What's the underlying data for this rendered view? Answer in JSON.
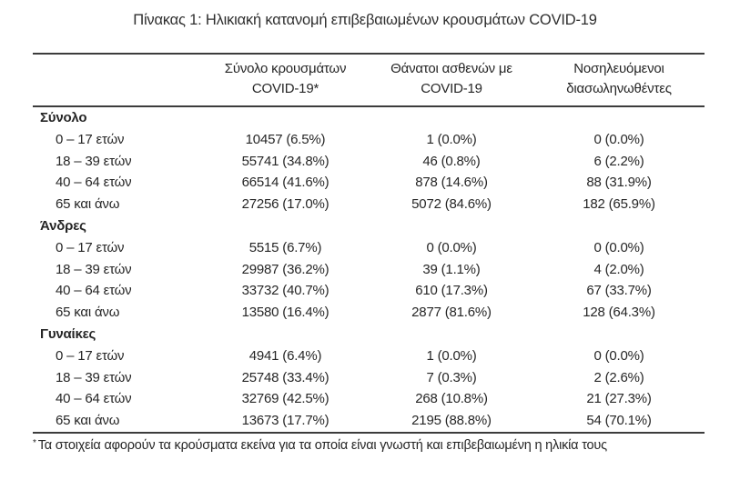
{
  "title": "Πίνακας 1: Ηλικιακή κατανομή επιβεβαιωμένων κρουσμάτων COVID-19",
  "table": {
    "col_headers": [
      {
        "line1": "Σύνολο κρουσμάτων",
        "line2": "COVID-19*"
      },
      {
        "line1": "Θάνατοι ασθενών με",
        "line2": "COVID-19"
      },
      {
        "line1": "Νοσηλευόμενοι",
        "line2": "διασωληνωθέντες"
      }
    ],
    "sections": [
      {
        "label": "Σύνολο",
        "rows": [
          {
            "age": "0 – 17 ετών",
            "cases": "10457 (6.5%)",
            "deaths": "1 (0.0%)",
            "intubated": "0 (0.0%)"
          },
          {
            "age": "18 – 39 ετών",
            "cases": "55741 (34.8%)",
            "deaths": "46 (0.8%)",
            "intubated": "6 (2.2%)"
          },
          {
            "age": "40 – 64 ετών",
            "cases": "66514 (41.6%)",
            "deaths": "878 (14.6%)",
            "intubated": "88 (31.9%)"
          },
          {
            "age": "65 και άνω",
            "cases": "27256 (17.0%)",
            "deaths": "5072 (84.6%)",
            "intubated": "182 (65.9%)"
          }
        ]
      },
      {
        "label": "Άνδρες",
        "rows": [
          {
            "age": "0 – 17 ετών",
            "cases": "5515 (6.7%)",
            "deaths": "0 (0.0%)",
            "intubated": "0 (0.0%)"
          },
          {
            "age": "18 – 39 ετών",
            "cases": "29987 (36.2%)",
            "deaths": "39 (1.1%)",
            "intubated": "4 (2.0%)"
          },
          {
            "age": "40 – 64 ετών",
            "cases": "33732 (40.7%)",
            "deaths": "610 (17.3%)",
            "intubated": "67 (33.7%)"
          },
          {
            "age": "65 και άνω",
            "cases": "13580 (16.4%)",
            "deaths": "2877 (81.6%)",
            "intubated": "128 (64.3%)"
          }
        ]
      },
      {
        "label": "Γυναίκες",
        "rows": [
          {
            "age": "0 – 17 ετών",
            "cases": "4941 (6.4%)",
            "deaths": "1 (0.0%)",
            "intubated": "0 (0.0%)"
          },
          {
            "age": "18 – 39 ετών",
            "cases": "25748 (33.4%)",
            "deaths": "7 (0.3%)",
            "intubated": "2 (2.6%)"
          },
          {
            "age": "40 – 64 ετών",
            "cases": "32769 (42.5%)",
            "deaths": "268 (10.8%)",
            "intubated": "21 (27.3%)"
          },
          {
            "age": "65 και άνω",
            "cases": "13673 (17.7%)",
            "deaths": "2195 (88.8%)",
            "intubated": "54 (70.1%)"
          }
        ]
      }
    ]
  },
  "footnote": {
    "marker": "*",
    "text": "Τα στοιχεία αφορούν τα κρούσματα εκείνα για τα οποία είναι γνωστή και επιβεβαιωμένη η ηλικία τους"
  },
  "colors": {
    "text": "#262626",
    "rule": "#3c3c3c",
    "background": "#ffffff"
  }
}
